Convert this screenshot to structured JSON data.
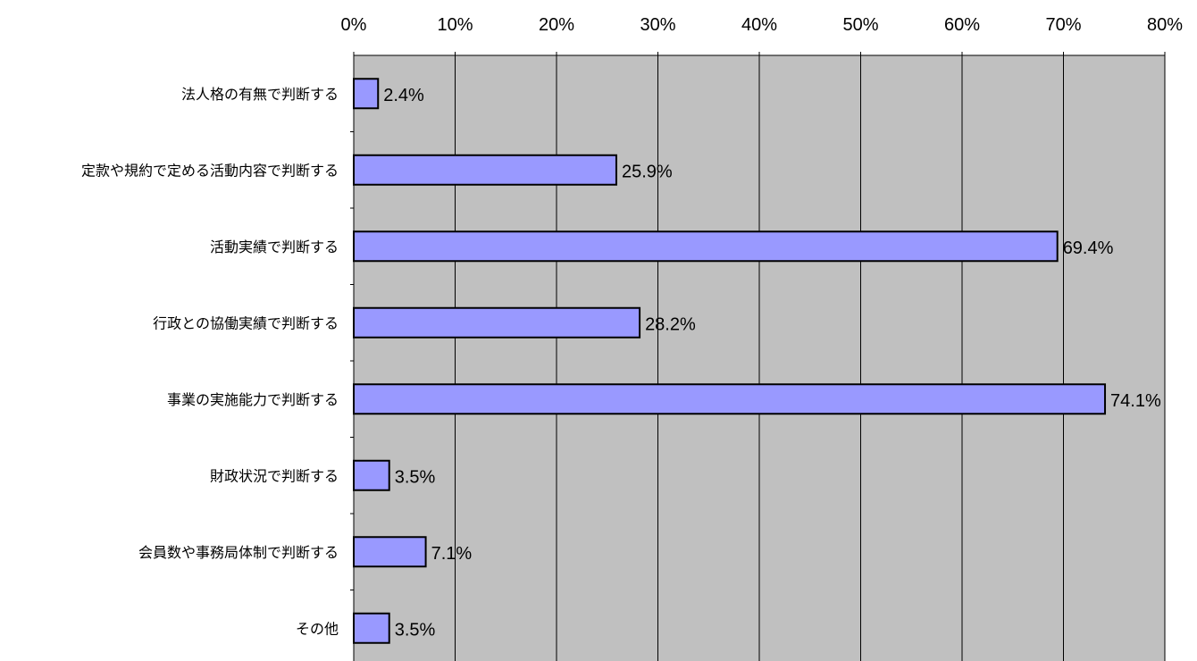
{
  "chart_data": {
    "type": "bar",
    "orientation": "horizontal",
    "categories": [
      "法人格の有無で判断する",
      "定款や規約で定める活動内容で判断する",
      "活動実績で判断する",
      "行政との協働実績で判断する",
      "事業の実施能力で判断する",
      "財政状況で判断する",
      "会員数や事務局体制で判断する",
      "その他"
    ],
    "values": [
      2.4,
      25.9,
      69.4,
      28.2,
      74.1,
      3.5,
      7.1,
      3.5
    ],
    "data_labels": [
      "2.4%",
      "25.9%",
      "69.4%",
      "28.2%",
      "74.1%",
      "3.5%",
      "7.1%",
      "3.5%"
    ],
    "xlim": [
      0,
      80
    ],
    "x_ticks": [
      "0%",
      "10%",
      "20%",
      "30%",
      "40%",
      "50%",
      "60%",
      "70%",
      "80%"
    ],
    "x_axis_position": "top",
    "grid": true,
    "legend": "none",
    "title": "",
    "xlabel": "",
    "ylabel": "",
    "colors": {
      "plot_background": "#c0c0c0",
      "bar_fill": "#9999ff",
      "bar_stroke": "#000000",
      "grid": "#000000"
    }
  }
}
